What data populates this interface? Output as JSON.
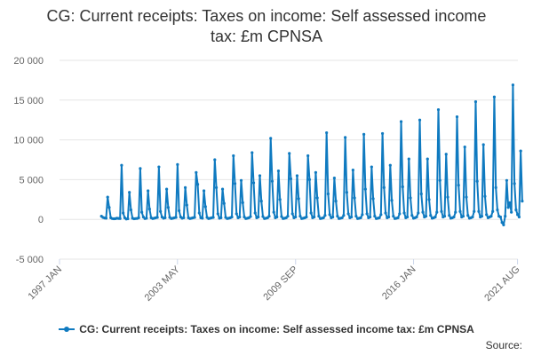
{
  "chart_data": {
    "type": "line",
    "title": "CG: Current receipts: Taxes on income: Self assessed income tax: £m CPNSA",
    "xlabel": "",
    "ylabel": "",
    "ylim": [
      -5000,
      20000
    ],
    "xlim": [
      1997.0,
      2021.6
    ],
    "y_ticks": [
      20000,
      15000,
      10000,
      5000,
      0,
      -5000
    ],
    "y_tick_labels": [
      "20 000",
      "15 000",
      "10 000",
      "5 000",
      "0",
      "-5 000"
    ],
    "x_ticks": [
      1997.0,
      2003.33,
      2009.67,
      2016.0,
      2021.58
    ],
    "x_tick_labels": [
      "1997 JAN",
      "2003 MAY",
      "2009 SEP",
      "2016 JAN",
      "2021 AUG"
    ],
    "grid": true,
    "legend": "bottom",
    "series": [
      {
        "name": "CG: Current receipts: Taxes on income: Self assessed income tax: £m CPNSA",
        "color": "#0f7ac0",
        "start": 1999.25,
        "step": 0.0833333,
        "values": [
          400,
          250,
          180,
          150,
          2800,
          1500,
          200,
          100,
          80,
          90,
          150,
          120,
          100,
          6800,
          800,
          200,
          50,
          80,
          3400,
          1200,
          150,
          80,
          100,
          120,
          200,
          6400,
          900,
          300,
          100,
          150,
          3600,
          1300,
          200,
          100,
          150,
          200,
          250,
          6600,
          1000,
          300,
          150,
          200,
          3800,
          1500,
          250,
          100,
          150,
          200,
          250,
          6900,
          1100,
          300,
          150,
          200,
          4000,
          1800,
          200,
          100,
          150,
          200,
          250,
          5900,
          4400,
          800,
          200,
          150,
          3600,
          1600,
          250,
          100,
          150,
          200,
          250,
          7500,
          4000,
          700,
          150,
          200,
          3800,
          2000,
          250,
          100,
          150,
          200,
          300,
          8000,
          4500,
          700,
          200,
          300,
          4900,
          2100,
          300,
          100,
          150,
          200,
          350,
          8400,
          4600,
          800,
          200,
          300,
          5500,
          2300,
          350,
          100,
          150,
          200,
          400,
          10200,
          4800,
          900,
          200,
          300,
          6100,
          2500,
          350,
          100,
          150,
          200,
          400,
          8300,
          5100,
          700,
          200,
          300,
          5500,
          2600,
          400,
          100,
          150,
          200,
          300,
          8000,
          5000,
          800,
          200,
          300,
          5900,
          2700,
          400,
          100,
          150,
          200,
          500,
          10900,
          3200,
          600,
          200,
          300,
          5200,
          2300,
          400,
          100,
          150,
          200,
          500,
          10300,
          3400,
          700,
          200,
          300,
          6200,
          2700,
          400,
          100,
          150,
          200,
          600,
          10700,
          3800,
          700,
          200,
          300,
          6600,
          2600,
          400,
          100,
          150,
          200,
          600,
          10800,
          4000,
          800,
          200,
          300,
          6800,
          2400,
          400,
          100,
          150,
          200,
          700,
          12300,
          4100,
          800,
          200,
          300,
          7600,
          2700,
          500,
          150,
          200,
          300,
          800,
          12500,
          3200,
          900,
          300,
          400,
          7600,
          2500,
          500,
          150,
          200,
          300,
          900,
          13800,
          4900,
          1000,
          300,
          400,
          8200,
          2800,
          500,
          150,
          200,
          300,
          900,
          12900,
          4300,
          1000,
          300,
          400,
          9100,
          2800,
          500,
          150,
          200,
          300,
          1000,
          14800,
          4800,
          1000,
          300,
          400,
          9400,
          2900,
          600,
          200,
          300,
          400,
          1000,
          15400,
          4000,
          1200,
          400,
          300,
          -400,
          -700,
          400,
          4900,
          1500,
          2100,
          900,
          16900,
          4500,
          1200,
          600,
          300,
          8600,
          2300
        ]
      }
    ]
  },
  "legend": {
    "label": "CG: Current receipts: Taxes on income: Self assessed income tax: £m CPNSA"
  },
  "footer": {
    "source": "Source:"
  }
}
